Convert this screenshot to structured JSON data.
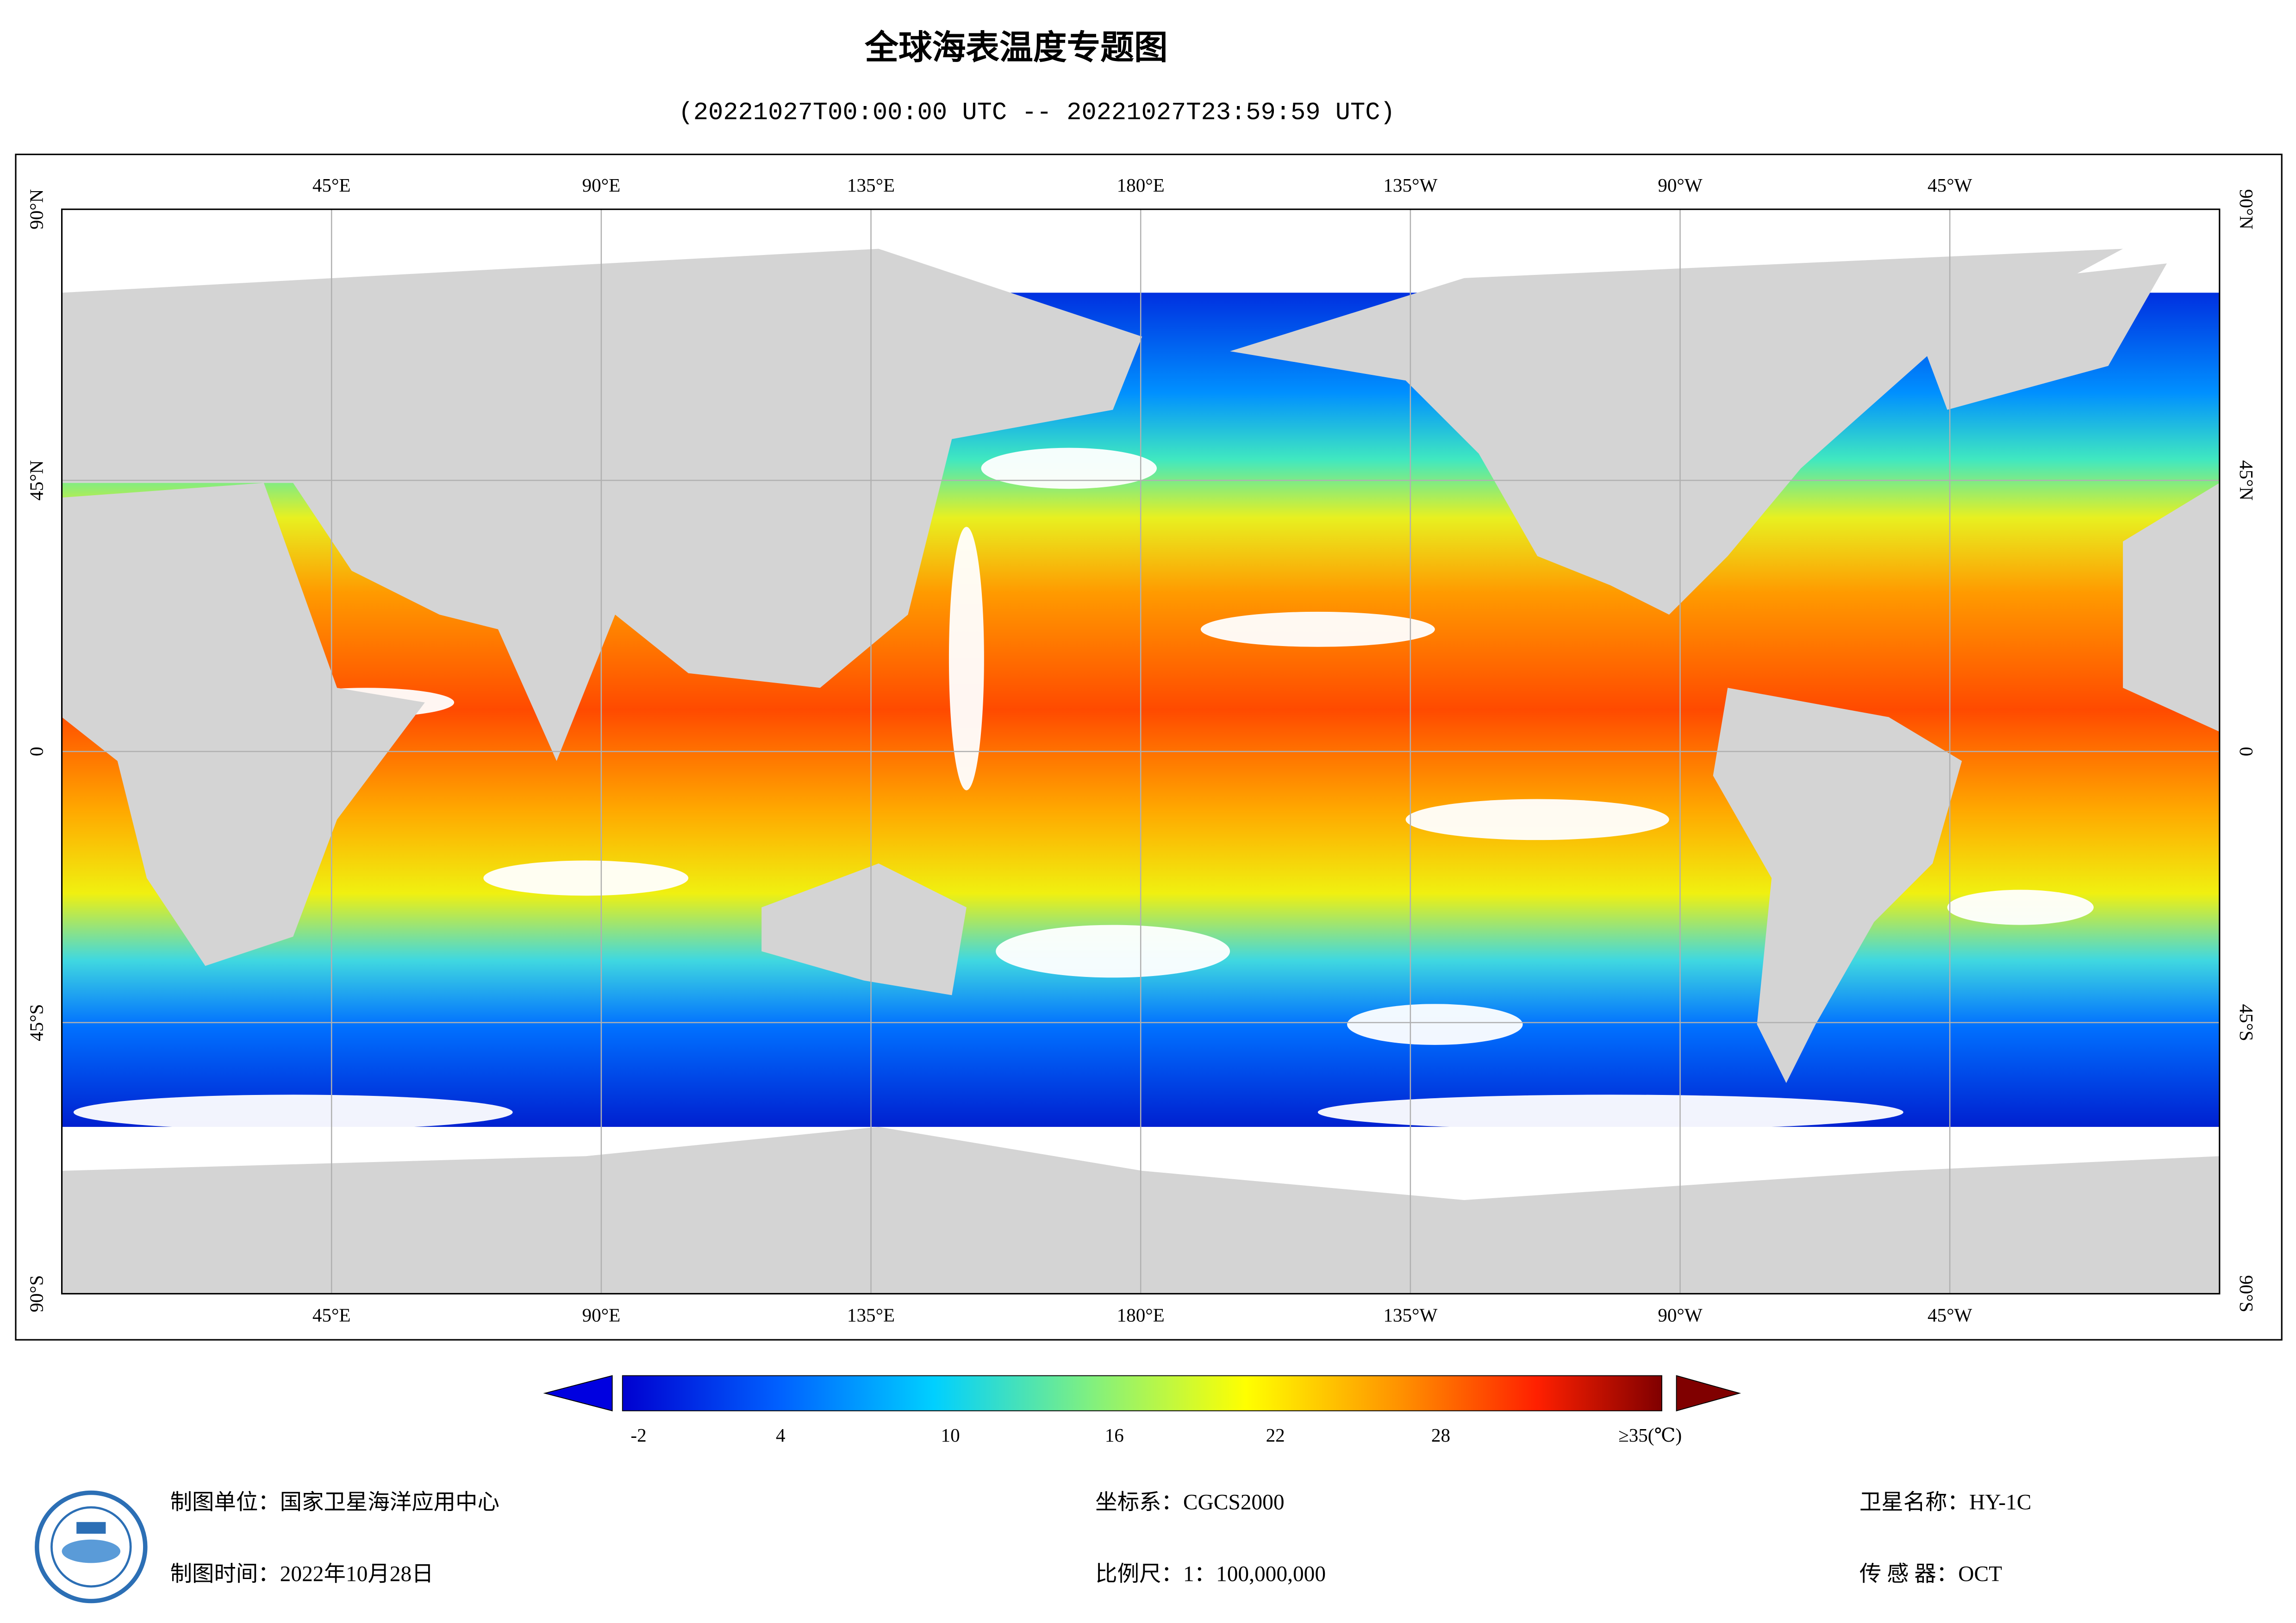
{
  "header": {
    "title": "全球海表温度专题图",
    "subtitle": "(20221027T00:00:00 UTC -- 20221027T23:59:59 UTC)"
  },
  "map": {
    "longitude_labels": [
      "45°E",
      "90°E",
      "135°E",
      "180°E",
      "135°W",
      "90°W",
      "45°W"
    ],
    "latitude_labels": [
      "90°N",
      "45°N",
      "0",
      "45°S",
      "90°S"
    ]
  },
  "legend": {
    "tick_labels": [
      "-2",
      "4",
      "10",
      "16",
      "22",
      "28",
      "≥35(℃)"
    ]
  },
  "footer": {
    "producer": "制图单位：国家卫星海洋应用中心",
    "date": "制图时间：2022年10月28日",
    "crs": "坐标系：CGCS2000",
    "scale": "比例尺：1：100,000,000",
    "satellite": "卫星名称：HY-1C",
    "sensor": "传 感 器：OCT"
  }
}
